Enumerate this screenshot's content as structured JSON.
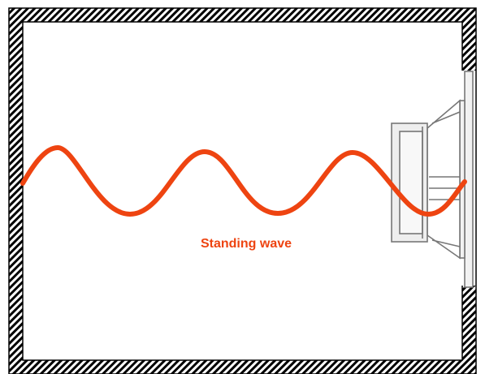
{
  "diagram": {
    "label": "Standing wave",
    "colors": {
      "wave": "#ee4411",
      "label": "#ee4411",
      "enclosure": "#000000",
      "speaker_line": "#777777",
      "speaker_fill": "#f2f2f2"
    },
    "icons": {
      "enclosure": "hatched-wall",
      "driver": "loudspeaker-driver-icon"
    }
  }
}
